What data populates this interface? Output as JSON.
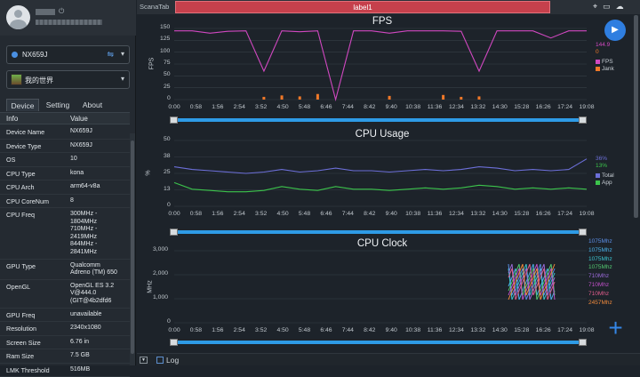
{
  "sidebar": {
    "device": "NX659J",
    "app": "我的世界",
    "tabs": [
      "Device",
      "Setting",
      "About"
    ],
    "table_headers": [
      "Info",
      "Value"
    ],
    "rows": [
      {
        "k": "Device Name",
        "v": "NX659J"
      },
      {
        "k": "Device Type",
        "v": "NX659J"
      },
      {
        "k": "OS",
        "v": "10"
      },
      {
        "k": "CPU Type",
        "v": "kona"
      },
      {
        "k": "CPU Arch",
        "v": "arm64-v8a"
      },
      {
        "k": "CPU CoreNum",
        "v": "8"
      },
      {
        "k": "CPU Freq",
        "v": "300MHz -\n1804MHz\n710MHz -\n2419MHz\n844MHz -\n2841MHz"
      },
      {
        "k": "GPU Type",
        "v": "Qualcomm\nAdreno (TM) 650"
      },
      {
        "k": "OpenGL",
        "v": "OpenGL ES 3.2\nV@444.0\n(GIT@4b2dfd6"
      },
      {
        "k": "GPU Freq",
        "v": "unavailable"
      },
      {
        "k": "Resolution",
        "v": "2340x1080"
      },
      {
        "k": "Screen Size",
        "v": "6.76 in"
      },
      {
        "k": "Ram Size",
        "v": "7.5 GB"
      },
      {
        "k": "LMK Threshold",
        "v": "516MB"
      }
    ]
  },
  "tabbar": {
    "name": "ScanaTab",
    "label": "label1"
  },
  "xticks": [
    "0:00",
    "0:58",
    "1:56",
    "2:54",
    "3:52",
    "4:50",
    "5:48",
    "6:46",
    "7:44",
    "8:42",
    "9:40",
    "10:38",
    "11:36",
    "12:34",
    "13:32",
    "14:30",
    "15:28",
    "16:26",
    "17:24",
    "19:08"
  ],
  "chart_data": [
    {
      "type": "line",
      "title": "FPS",
      "ylabel": "FPS",
      "ylim": [
        0,
        150
      ],
      "yticks": [
        "150",
        "125",
        "100",
        "75",
        "50",
        "25",
        "0"
      ],
      "legend_values": [
        "144.9",
        "0"
      ],
      "series": [
        {
          "name": "FPS",
          "color": "#d048c0",
          "values": [
            145,
            145,
            140,
            144,
            145,
            60,
            145,
            143,
            145,
            0,
            145,
            145,
            140,
            145,
            145,
            145,
            144,
            60,
            145,
            145,
            145,
            130,
            145,
            145
          ]
        },
        {
          "name": "Jank",
          "color": "#f07828",
          "values": [
            0,
            0,
            0,
            0,
            0,
            2,
            5,
            3,
            8,
            0,
            0,
            0,
            4,
            0,
            0,
            6,
            2,
            3,
            0,
            0,
            0,
            0,
            0,
            0
          ]
        }
      ]
    },
    {
      "type": "line",
      "title": "CPU Usage",
      "ylabel": "%",
      "ylim": [
        0,
        50
      ],
      "yticks": [
        "50",
        "38",
        "25",
        "13",
        "0"
      ],
      "legend_values": [
        "36%",
        "13%"
      ],
      "series": [
        {
          "name": "Total",
          "color": "#6c6fd8",
          "values": [
            30,
            28,
            27,
            26,
            25,
            26,
            28,
            26,
            27,
            29,
            27,
            27,
            26,
            27,
            28,
            27,
            28,
            30,
            29,
            27,
            28,
            27,
            28,
            36
          ]
        },
        {
          "name": "App",
          "color": "#3cc44c",
          "values": [
            18,
            13,
            12,
            11,
            11,
            12,
            15,
            13,
            12,
            15,
            13,
            13,
            12,
            13,
            14,
            13,
            14,
            16,
            15,
            13,
            14,
            13,
            14,
            13
          ]
        }
      ]
    },
    {
      "type": "line",
      "title": "CPU Clock",
      "ylabel": "MHz",
      "ylim": [
        0,
        3000
      ],
      "yticks": [
        "3,000",
        "2,000",
        "1,000",
        "0"
      ],
      "legend": [
        "1075Mhz",
        "1075Mhz",
        "1075Mhz",
        "1075Mhz",
        "710Mhz",
        "710Mhz",
        "710Mhz",
        "2457Mhz"
      ],
      "legend_colors": [
        "#5b8ee6",
        "#4ab0e8",
        "#3bc4d0",
        "#52c870",
        "#9a6ad8",
        "#c050c8",
        "#e05c8c",
        "#f08a3c"
      ]
    }
  ],
  "bottom": {
    "log_label": "Log"
  }
}
